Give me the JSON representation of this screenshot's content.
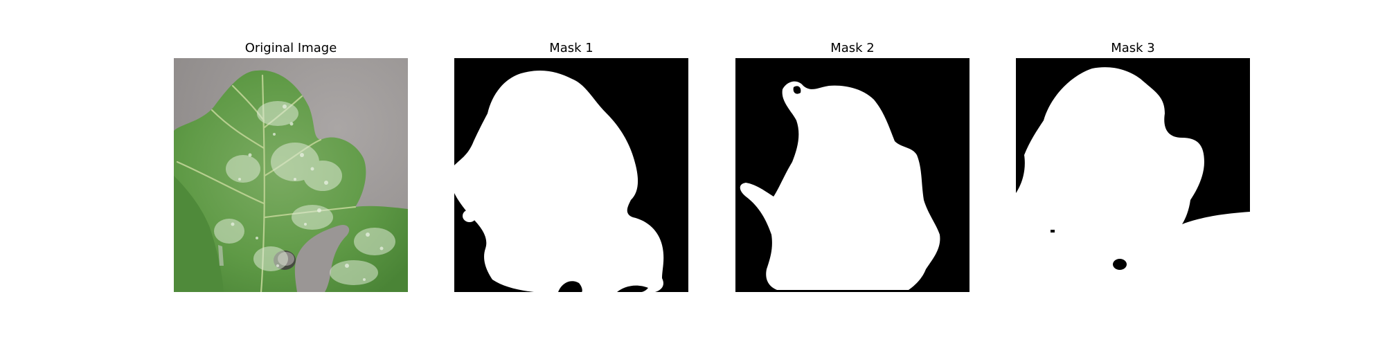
{
  "figure": {
    "panels": [
      {
        "title": "Original Image"
      },
      {
        "title": "Mask 1"
      },
      {
        "title": "Mask 2"
      },
      {
        "title": "Mask 3"
      }
    ],
    "colors": {
      "background_gray": "#9e9a99",
      "leaf_green": "#5f9a46",
      "leaf_dark": "#4a8436",
      "mildew_white": "#d9e6d0",
      "mask_black": "#000000",
      "mask_white": "#ffffff"
    }
  }
}
